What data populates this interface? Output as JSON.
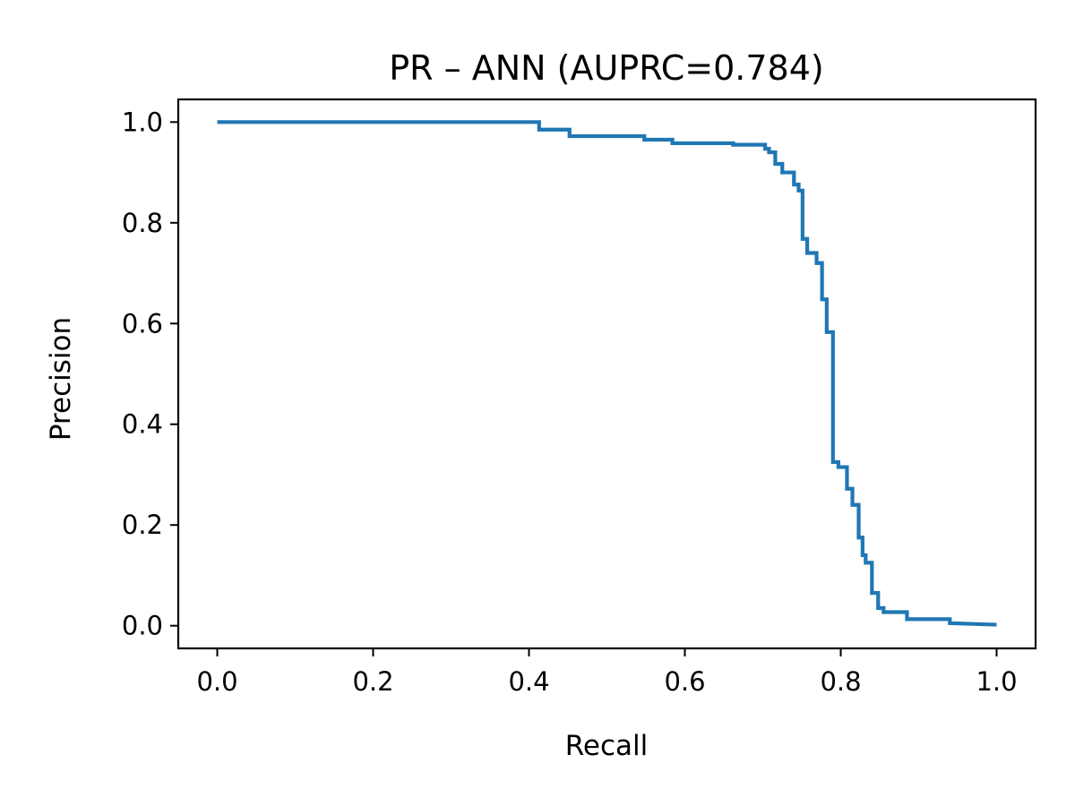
{
  "chart_data": {
    "type": "line",
    "title": "PR – ANN (AUPRC=0.784)",
    "xlabel": "Recall",
    "ylabel": "Precision",
    "xlim": [
      -0.05,
      1.05
    ],
    "ylim": [
      -0.045,
      1.045
    ],
    "xticks": [
      "0.0",
      "0.2",
      "0.4",
      "0.6",
      "0.8",
      "1.0"
    ],
    "yticks": [
      "0.0",
      "0.2",
      "0.4",
      "0.6",
      "0.8",
      "1.0"
    ],
    "grid": false,
    "legend": "none",
    "series": [
      {
        "color": "#1f77b4",
        "step": true,
        "x": [
          0.0,
          0.413,
          0.413,
          0.452,
          0.452,
          0.548,
          0.548,
          0.584,
          0.584,
          0.662,
          0.662,
          0.703,
          0.703,
          0.708,
          0.708,
          0.716,
          0.716,
          0.725,
          0.725,
          0.74,
          0.74,
          0.746,
          0.746,
          0.751,
          0.751,
          0.757,
          0.757,
          0.769,
          0.769,
          0.776,
          0.776,
          0.782,
          0.782,
          0.79,
          0.79,
          0.797,
          0.797,
          0.808,
          0.808,
          0.815,
          0.815,
          0.823,
          0.823,
          0.828,
          0.828,
          0.832,
          0.832,
          0.84,
          0.84,
          0.848,
          0.848,
          0.855,
          0.855,
          0.885,
          0.885,
          0.94,
          0.94,
          1.0
        ],
        "y": [
          1.0,
          1.0,
          0.985,
          0.985,
          0.972,
          0.972,
          0.965,
          0.965,
          0.958,
          0.958,
          0.955,
          0.955,
          0.947,
          0.947,
          0.94,
          0.94,
          0.917,
          0.917,
          0.9,
          0.9,
          0.876,
          0.876,
          0.864,
          0.864,
          0.768,
          0.768,
          0.74,
          0.74,
          0.72,
          0.72,
          0.648,
          0.648,
          0.583,
          0.583,
          0.325,
          0.325,
          0.315,
          0.315,
          0.272,
          0.272,
          0.24,
          0.24,
          0.175,
          0.175,
          0.14,
          0.14,
          0.125,
          0.125,
          0.065,
          0.065,
          0.035,
          0.035,
          0.027,
          0.027,
          0.013,
          0.013,
          0.005,
          0.002
        ]
      }
    ]
  }
}
